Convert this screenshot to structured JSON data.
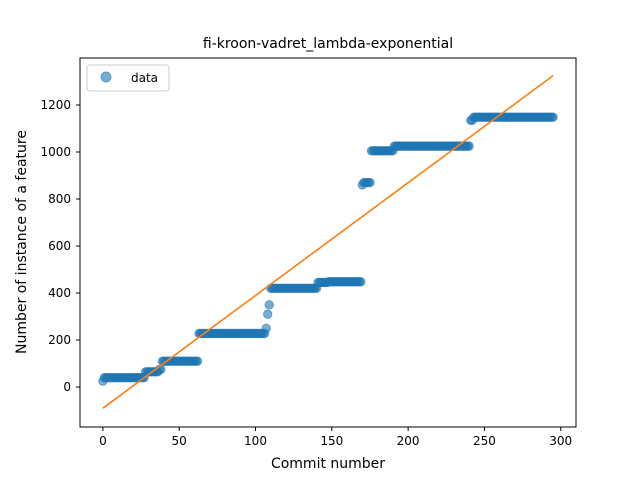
{
  "chart_data": {
    "type": "scatter",
    "title": "fi-kroon-vadret_lambda-exponential",
    "xlabel": "Commit number",
    "ylabel": "Number of instance of a feature",
    "xlim": [
      -15,
      310
    ],
    "ylim": [
      -170,
      1400
    ],
    "xticks": [
      0,
      50,
      100,
      150,
      200,
      250,
      300
    ],
    "yticks": [
      0,
      200,
      400,
      600,
      800,
      1000,
      1200
    ],
    "legend": {
      "placement": "upper-left",
      "entries": [
        {
          "label": "data",
          "marker": "circle"
        }
      ]
    },
    "colors": {
      "data": "#1f77b4",
      "fit": "#ff7f0e"
    },
    "series": [
      {
        "name": "data",
        "kind": "scatter",
        "segments": [
          {
            "x_start": 0,
            "x_end": 0,
            "y": 25
          },
          {
            "x_start": 1,
            "x_end": 27,
            "y": 40
          },
          {
            "x_start": 28,
            "x_end": 36,
            "y": 65
          },
          {
            "x_start": 37,
            "x_end": 38,
            "y": 75
          },
          {
            "x_start": 39,
            "x_end": 62,
            "y": 110
          },
          {
            "x_start": 63,
            "x_end": 106,
            "y": 228
          },
          {
            "x_start": 107,
            "x_end": 107,
            "y": 250
          },
          {
            "x_start": 108,
            "x_end": 108,
            "y": 310
          },
          {
            "x_start": 109,
            "x_end": 109,
            "y": 350
          },
          {
            "x_start": 110,
            "x_end": 140,
            "y": 420
          },
          {
            "x_start": 141,
            "x_end": 147,
            "y": 445
          },
          {
            "x_start": 148,
            "x_end": 169,
            "y": 448
          },
          {
            "x_start": 170,
            "x_end": 170,
            "y": 860
          },
          {
            "x_start": 171,
            "x_end": 175,
            "y": 870
          },
          {
            "x_start": 176,
            "x_end": 190,
            "y": 1005
          },
          {
            "x_start": 191,
            "x_end": 240,
            "y": 1025
          },
          {
            "x_start": 241,
            "x_end": 242,
            "y": 1135
          },
          {
            "x_start": 243,
            "x_end": 295,
            "y": 1148
          }
        ]
      },
      {
        "kind": "line",
        "points": [
          {
            "x": 0,
            "y": -90
          },
          {
            "x": 295,
            "y": 1325
          }
        ]
      }
    ]
  }
}
